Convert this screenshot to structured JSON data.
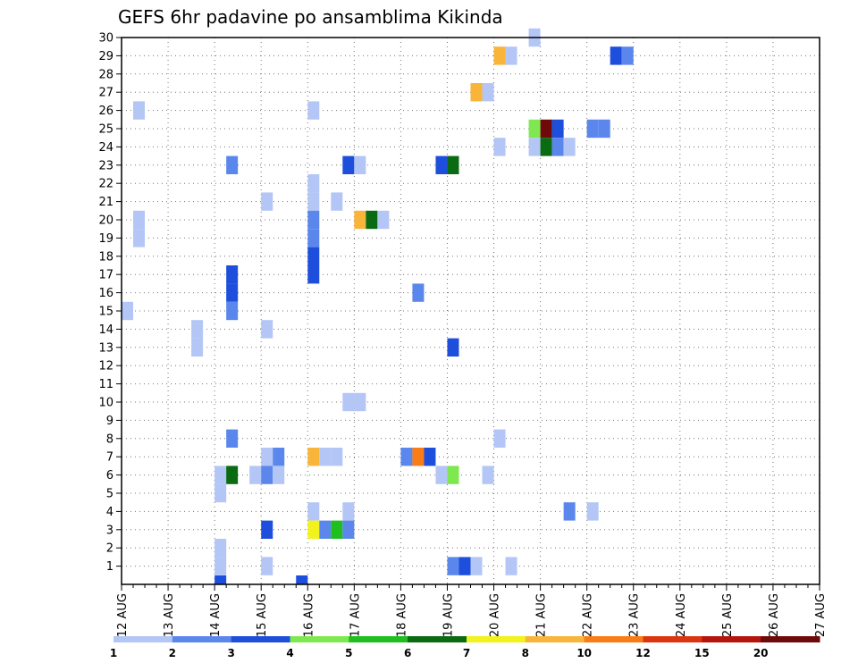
{
  "chart_data": {
    "type": "heatmap",
    "title": "GEFS 6hr padavine po ansamblima Kikinda",
    "xlabel": "",
    "ylabel": "",
    "x_tick_labels": [
      "12 AUG",
      "13 AUG",
      "14 AUG",
      "15 AUG",
      "16 AUG",
      "17 AUG",
      "18 AUG",
      "19 AUG",
      "20 AUG",
      "21 AUG",
      "22 AUG",
      "23 AUG",
      "24 AUG",
      "25 AUG",
      "26 AUG",
      "27 AUG"
    ],
    "y_tick_labels": [
      "1",
      "2",
      "3",
      "4",
      "5",
      "6",
      "7",
      "8",
      "9",
      "10",
      "11",
      "12",
      "13",
      "14",
      "15",
      "16",
      "17",
      "18",
      "19",
      "20",
      "21",
      "22",
      "23",
      "24",
      "25",
      "26",
      "27",
      "28",
      "29",
      "30"
    ],
    "xlim_days": [
      0,
      15
    ],
    "ylim": [
      0,
      30
    ],
    "time_step_hours": 6,
    "grid": true,
    "legend": {
      "placement": "bottom",
      "labels": [
        "1",
        "2",
        "3",
        "4",
        "5",
        "6",
        "7",
        "8",
        "10",
        "12",
        "15",
        "20"
      ],
      "colors": [
        "#b3c6f5",
        "#5b87ec",
        "#1e4fdc",
        "#7fe850",
        "#1fbf1f",
        "#0a6b12",
        "#f2f21c",
        "#f9b43a",
        "#f97c16",
        "#dc3510",
        "#b4150c",
        "#6e0a0a"
      ]
    },
    "cells": [
      {
        "day": 12.25,
        "member": 26,
        "level": 1
      },
      {
        "day": 12.25,
        "member": 20,
        "level": 1
      },
      {
        "day": 12.25,
        "member": 19,
        "level": 1
      },
      {
        "day": 12.0,
        "member": 15,
        "level": 1
      },
      {
        "day": 13.5,
        "member": 14,
        "level": 1
      },
      {
        "day": 13.5,
        "member": 13,
        "level": 1
      },
      {
        "day": 14.0,
        "member": 6,
        "level": 1
      },
      {
        "day": 14.0,
        "member": 5,
        "level": 1
      },
      {
        "day": 14.0,
        "member": 2,
        "level": 1
      },
      {
        "day": 14.0,
        "member": 1,
        "level": 1
      },
      {
        "day": 14.0,
        "member": -1,
        "level": 3
      },
      {
        "day": 14.25,
        "member": 23,
        "level": 2
      },
      {
        "day": 14.25,
        "member": 17,
        "level": 3
      },
      {
        "day": 14.25,
        "member": 16,
        "level": 3
      },
      {
        "day": 14.25,
        "member": 15,
        "level": 2
      },
      {
        "day": 14.25,
        "member": 8,
        "level": 2
      },
      {
        "day": 14.25,
        "member": 6,
        "level": 6
      },
      {
        "day": 14.75,
        "member": 6,
        "level": 1
      },
      {
        "day": 15.0,
        "member": 21,
        "level": 1
      },
      {
        "day": 15.0,
        "member": 14,
        "level": 1
      },
      {
        "day": 15.0,
        "member": 7,
        "level": 1
      },
      {
        "day": 15.0,
        "member": 6,
        "level": 2
      },
      {
        "day": 15.0,
        "member": 3,
        "level": 3
      },
      {
        "day": 15.0,
        "member": 1,
        "level": 1
      },
      {
        "day": 15.25,
        "member": 7,
        "level": 2
      },
      {
        "day": 15.25,
        "member": 6,
        "level": 1
      },
      {
        "day": 15.75,
        "member": -1,
        "level": 3
      },
      {
        "day": 16.0,
        "member": 26,
        "level": 1
      },
      {
        "day": 16.0,
        "member": 22,
        "level": 1
      },
      {
        "day": 16.0,
        "member": 21,
        "level": 1
      },
      {
        "day": 16.0,
        "member": 20,
        "level": 2
      },
      {
        "day": 16.0,
        "member": 19,
        "level": 2
      },
      {
        "day": 16.0,
        "member": 18,
        "level": 3
      },
      {
        "day": 16.0,
        "member": 17,
        "level": 3
      },
      {
        "day": 16.0,
        "member": 7,
        "level": 8
      },
      {
        "day": 16.0,
        "member": 4,
        "level": 1
      },
      {
        "day": 16.0,
        "member": 3,
        "level": 7
      },
      {
        "day": 16.25,
        "member": 7,
        "level": 1
      },
      {
        "day": 16.25,
        "member": 3,
        "level": 2
      },
      {
        "day": 16.5,
        "member": 21,
        "level": 1
      },
      {
        "day": 16.5,
        "member": 7,
        "level": 1
      },
      {
        "day": 16.5,
        "member": 3,
        "level": 5
      },
      {
        "day": 16.75,
        "member": 23,
        "level": 3
      },
      {
        "day": 16.75,
        "member": 10,
        "level": 1
      },
      {
        "day": 16.75,
        "member": 4,
        "level": 1
      },
      {
        "day": 16.75,
        "member": 3,
        "level": 2
      },
      {
        "day": 17.0,
        "member": 23,
        "level": 1
      },
      {
        "day": 17.0,
        "member": 20,
        "level": 8
      },
      {
        "day": 17.0,
        "member": 10,
        "level": 1
      },
      {
        "day": 17.25,
        "member": 20,
        "level": 6
      },
      {
        "day": 17.5,
        "member": 20,
        "level": 1
      },
      {
        "day": 18.0,
        "member": 7,
        "level": 2
      },
      {
        "day": 18.25,
        "member": 16,
        "level": 2
      },
      {
        "day": 18.25,
        "member": 7,
        "level": 9
      },
      {
        "day": 18.5,
        "member": 7,
        "level": 3
      },
      {
        "day": 18.75,
        "member": 23,
        "level": 3
      },
      {
        "day": 18.75,
        "member": 6,
        "level": 1
      },
      {
        "day": 19.0,
        "member": 23,
        "level": 6
      },
      {
        "day": 19.0,
        "member": 13,
        "level": 3
      },
      {
        "day": 19.0,
        "member": 6,
        "level": 4
      },
      {
        "day": 19.0,
        "member": 1,
        "level": 2
      },
      {
        "day": 19.25,
        "member": 1,
        "level": 3
      },
      {
        "day": 19.5,
        "member": 27,
        "level": 8
      },
      {
        "day": 19.5,
        "member": 1,
        "level": 1
      },
      {
        "day": 19.75,
        "member": 27,
        "level": 1
      },
      {
        "day": 19.75,
        "member": 6,
        "level": 1
      },
      {
        "day": 20.0,
        "member": 29,
        "level": 8
      },
      {
        "day": 20.0,
        "member": 24,
        "level": 1
      },
      {
        "day": 20.0,
        "member": 8,
        "level": 1
      },
      {
        "day": 20.25,
        "member": 29,
        "level": 1
      },
      {
        "day": 20.25,
        "member": 1,
        "level": 1
      },
      {
        "day": 20.75,
        "member": 30,
        "level": 1
      },
      {
        "day": 20.75,
        "member": 25,
        "level": 4
      },
      {
        "day": 20.75,
        "member": 24,
        "level": 1
      },
      {
        "day": 21.0,
        "member": 25,
        "level": 12
      },
      {
        "day": 21.0,
        "member": 24,
        "level": 6
      },
      {
        "day": 21.25,
        "member": 25,
        "level": 3
      },
      {
        "day": 21.25,
        "member": 24,
        "level": 2
      },
      {
        "day": 21.5,
        "member": 24,
        "level": 1
      },
      {
        "day": 21.5,
        "member": 4,
        "level": 2
      },
      {
        "day": 22.0,
        "member": 25,
        "level": 2
      },
      {
        "day": 22.0,
        "member": 4,
        "level": 1
      },
      {
        "day": 22.25,
        "member": 25,
        "level": 2
      },
      {
        "day": 22.5,
        "member": 29,
        "level": 3
      },
      {
        "day": 22.75,
        "member": 29,
        "level": 2
      }
    ]
  }
}
